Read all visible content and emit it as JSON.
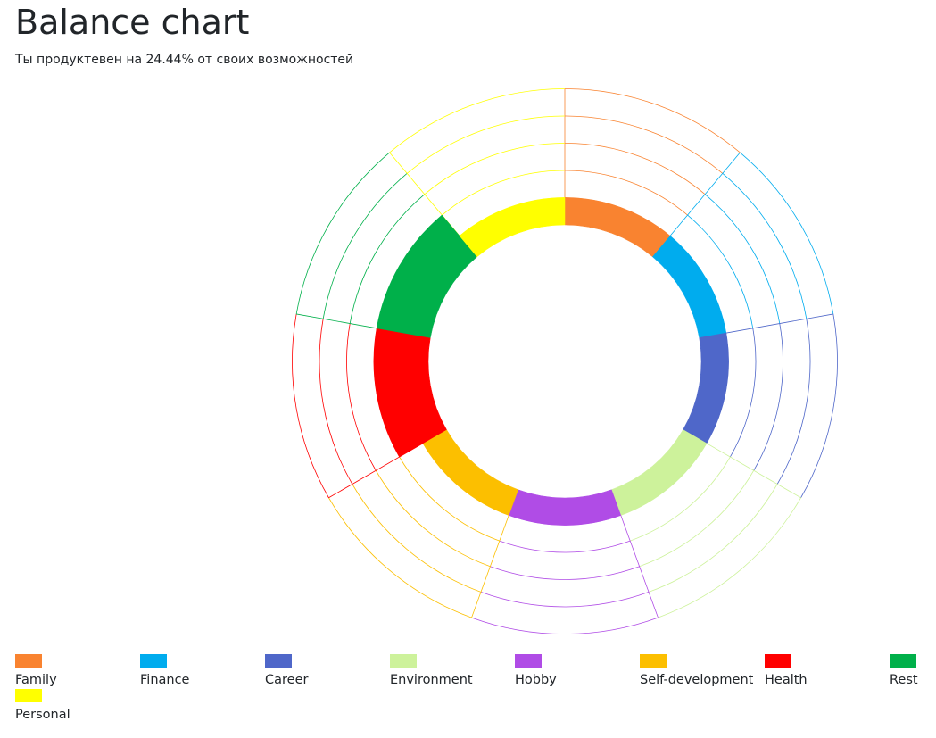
{
  "page": {
    "title": "Balance chart",
    "subtitle": "Ты продуктевен на 24.44% от своих возможностей"
  },
  "chart_data": {
    "type": "polar-segment",
    "title": "Balance chart",
    "max_level": 5,
    "categories": [
      "Family",
      "Finance",
      "Career",
      "Environment",
      "Hobby",
      "Self-development",
      "Health",
      "Rest",
      "Personal"
    ],
    "values": [
      1,
      1,
      1,
      1,
      1,
      1,
      2,
      2,
      1
    ],
    "colors": [
      "#f98330",
      "#00acee",
      "#4f67c9",
      "#cdf29b",
      "#b04ce6",
      "#fcbf00",
      "#ff0000",
      "#00b04a",
      "#ffff00"
    ],
    "legend": "bottom"
  }
}
